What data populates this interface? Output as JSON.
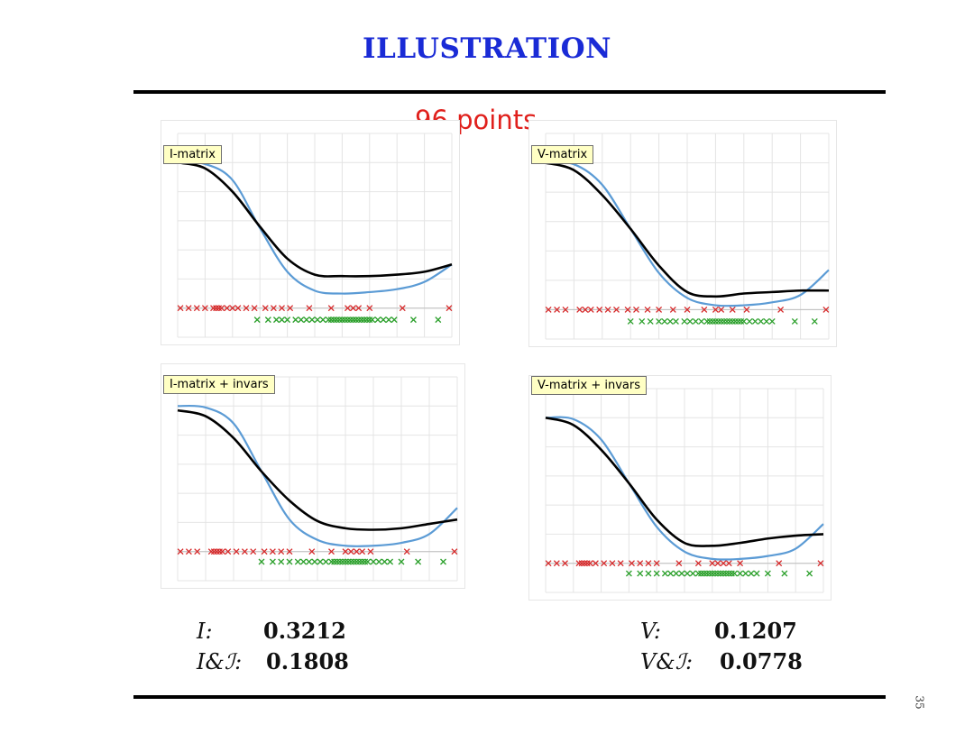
{
  "slide": {
    "title": "ILLUSTRATION",
    "page_number": "35"
  },
  "figure": {
    "heading": "96 points",
    "colors": {
      "heading": "#e0201c",
      "target_curve": "#5b9bd5",
      "fit_curve": "#000000",
      "red_marks": "#d62728",
      "green_marks": "#2ca02c",
      "label_bg": "#ffffc4"
    }
  },
  "panels": [
    {
      "label": "I-matrix"
    },
    {
      "label": "V-matrix"
    },
    {
      "label": "I-matrix + invars"
    },
    {
      "label": "V-matrix + invars"
    }
  ],
  "metrics": {
    "left": [
      {
        "name": "I:",
        "value": "0.3212"
      },
      {
        "name": "I&ℐ:",
        "value": "0.1808"
      }
    ],
    "right": [
      {
        "name": "V:",
        "value": "0.1207"
      },
      {
        "name": "V&ℐ:",
        "value": "0.0778"
      }
    ]
  },
  "chart_data": [
    {
      "type": "line",
      "title": "I-matrix",
      "xlim": [
        0,
        1
      ],
      "ylim": [
        -0.2,
        1.2
      ],
      "grid": true,
      "series": [
        {
          "x": [
            0,
            0.1,
            0.2,
            0.3,
            0.4,
            0.5,
            0.6,
            0.7,
            0.8,
            0.9,
            1.0
          ],
          "y": [
            1.0,
            0.99,
            0.88,
            0.55,
            0.25,
            0.12,
            0.1,
            0.11,
            0.13,
            0.18,
            0.3
          ]
        },
        {
          "x": [
            0,
            0.1,
            0.2,
            0.3,
            0.4,
            0.5,
            0.6,
            0.7,
            0.8,
            0.9,
            1.0
          ],
          "y": [
            1.0,
            0.96,
            0.8,
            0.56,
            0.34,
            0.23,
            0.22,
            0.22,
            0.23,
            0.25,
            0.3
          ]
        }
      ],
      "marks_red_y": 0.0,
      "marks_red_x": [
        0.01,
        0.04,
        0.07,
        0.1,
        0.13,
        0.14,
        0.15,
        0.16,
        0.18,
        0.2,
        0.22,
        0.25,
        0.28,
        0.32,
        0.35,
        0.38,
        0.41,
        0.48,
        0.56,
        0.62,
        0.64,
        0.66,
        0.7,
        0.82,
        0.99
      ],
      "marks_green_y": -0.08,
      "marks_green_x": [
        0.29,
        0.33,
        0.36,
        0.38,
        0.4,
        0.43,
        0.45,
        0.47,
        0.49,
        0.51,
        0.53,
        0.55,
        0.56,
        0.57,
        0.58,
        0.59,
        0.6,
        0.61,
        0.62,
        0.63,
        0.64,
        0.65,
        0.66,
        0.67,
        0.68,
        0.69,
        0.7,
        0.71,
        0.73,
        0.75,
        0.77,
        0.79,
        0.86,
        0.95
      ]
    },
    {
      "type": "line",
      "title": "V-matrix",
      "xlim": [
        0,
        1
      ],
      "ylim": [
        -0.2,
        1.2
      ],
      "grid": true,
      "series": [
        {
          "x": [
            0,
            0.1,
            0.2,
            0.3,
            0.4,
            0.5,
            0.6,
            0.7,
            0.8,
            0.9,
            1.0
          ],
          "y": [
            1.0,
            0.99,
            0.85,
            0.55,
            0.25,
            0.08,
            0.03,
            0.03,
            0.05,
            0.1,
            0.27
          ]
        },
        {
          "x": [
            0,
            0.1,
            0.2,
            0.3,
            0.4,
            0.5,
            0.6,
            0.7,
            0.8,
            0.9,
            1.0
          ],
          "y": [
            1.0,
            0.95,
            0.78,
            0.55,
            0.3,
            0.12,
            0.09,
            0.11,
            0.12,
            0.13,
            0.13
          ]
        }
      ],
      "marks_red_y": 0.0,
      "marks_red_x": [
        0.01,
        0.04,
        0.07,
        0.12,
        0.14,
        0.16,
        0.19,
        0.22,
        0.25,
        0.29,
        0.32,
        0.36,
        0.4,
        0.45,
        0.5,
        0.56,
        0.6,
        0.62,
        0.66,
        0.71,
        0.83,
        0.99
      ],
      "marks_green_y": -0.08,
      "marks_green_x": [
        0.3,
        0.34,
        0.37,
        0.4,
        0.42,
        0.44,
        0.46,
        0.49,
        0.51,
        0.53,
        0.55,
        0.57,
        0.58,
        0.59,
        0.6,
        0.61,
        0.62,
        0.63,
        0.64,
        0.65,
        0.66,
        0.67,
        0.68,
        0.69,
        0.7,
        0.72,
        0.74,
        0.76,
        0.78,
        0.8,
        0.88,
        0.95
      ]
    },
    {
      "type": "line",
      "title": "I-matrix + invars",
      "xlim": [
        0,
        1
      ],
      "ylim": [
        -0.2,
        1.2
      ],
      "grid": true,
      "series": [
        {
          "x": [
            0,
            0.1,
            0.2,
            0.3,
            0.4,
            0.5,
            0.6,
            0.7,
            0.8,
            0.9,
            1.0
          ],
          "y": [
            1.0,
            0.99,
            0.88,
            0.55,
            0.22,
            0.08,
            0.04,
            0.04,
            0.06,
            0.12,
            0.3
          ]
        },
        {
          "x": [
            0,
            0.1,
            0.2,
            0.3,
            0.4,
            0.5,
            0.6,
            0.7,
            0.8,
            0.9,
            1.0
          ],
          "y": [
            0.97,
            0.93,
            0.78,
            0.55,
            0.35,
            0.21,
            0.16,
            0.15,
            0.16,
            0.19,
            0.22
          ]
        }
      ],
      "marks_red_y": 0.0,
      "marks_red_x": [
        0.01,
        0.04,
        0.07,
        0.12,
        0.13,
        0.14,
        0.15,
        0.16,
        0.18,
        0.21,
        0.24,
        0.27,
        0.31,
        0.34,
        0.37,
        0.4,
        0.48,
        0.55,
        0.6,
        0.62,
        0.64,
        0.66,
        0.69,
        0.82,
        0.99
      ],
      "marks_green_y": -0.07,
      "marks_green_x": [
        0.3,
        0.34,
        0.37,
        0.4,
        0.43,
        0.45,
        0.47,
        0.49,
        0.51,
        0.53,
        0.55,
        0.56,
        0.57,
        0.58,
        0.59,
        0.6,
        0.61,
        0.62,
        0.63,
        0.64,
        0.65,
        0.66,
        0.67,
        0.68,
        0.7,
        0.72,
        0.74,
        0.76,
        0.8,
        0.86,
        0.95
      ]
    },
    {
      "type": "line",
      "title": "V-matrix + invars",
      "xlim": [
        0,
        1
      ],
      "ylim": [
        -0.2,
        1.2
      ],
      "grid": true,
      "series": [
        {
          "x": [
            0,
            0.1,
            0.2,
            0.3,
            0.4,
            0.5,
            0.6,
            0.7,
            0.8,
            0.9,
            1.0
          ],
          "y": [
            1.0,
            0.99,
            0.85,
            0.55,
            0.25,
            0.08,
            0.03,
            0.03,
            0.05,
            0.1,
            0.27
          ]
        },
        {
          "x": [
            0,
            0.1,
            0.2,
            0.3,
            0.4,
            0.5,
            0.6,
            0.7,
            0.8,
            0.9,
            1.0
          ],
          "y": [
            1.0,
            0.95,
            0.78,
            0.55,
            0.3,
            0.14,
            0.12,
            0.14,
            0.17,
            0.19,
            0.2
          ]
        }
      ],
      "marks_red_y": 0.0,
      "marks_red_x": [
        0.01,
        0.04,
        0.07,
        0.12,
        0.13,
        0.14,
        0.15,
        0.16,
        0.18,
        0.21,
        0.24,
        0.27,
        0.31,
        0.34,
        0.37,
        0.4,
        0.48,
        0.55,
        0.6,
        0.62,
        0.64,
        0.66,
        0.7,
        0.84,
        0.99
      ],
      "marks_green_y": -0.07,
      "marks_green_x": [
        0.3,
        0.34,
        0.37,
        0.4,
        0.43,
        0.45,
        0.47,
        0.49,
        0.51,
        0.53,
        0.55,
        0.56,
        0.57,
        0.58,
        0.59,
        0.6,
        0.61,
        0.62,
        0.63,
        0.64,
        0.65,
        0.66,
        0.67,
        0.68,
        0.7,
        0.72,
        0.74,
        0.76,
        0.8,
        0.86,
        0.95
      ]
    }
  ]
}
